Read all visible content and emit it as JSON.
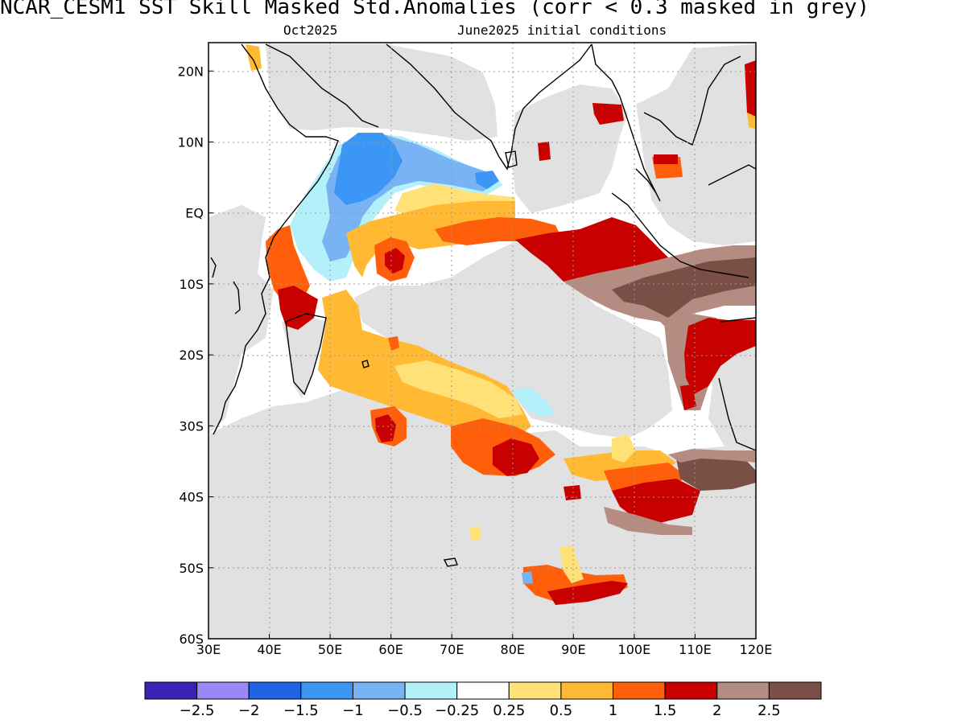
{
  "title": "NCAR_CESM1   SST Skill Masked Std.Anomalies (corr < 0.3 masked in grey)",
  "subtitle_month": "Oct2025",
  "subtitle_init": "June2025 initial conditions",
  "map": {
    "lon_range": [
      30,
      120
    ],
    "lat_range": [
      -60,
      24
    ],
    "lon_ticks": [
      {
        "value": 30,
        "label": "30E"
      },
      {
        "value": 40,
        "label": "40E"
      },
      {
        "value": 50,
        "label": "50E"
      },
      {
        "value": 60,
        "label": "60E"
      },
      {
        "value": 70,
        "label": "70E"
      },
      {
        "value": 80,
        "label": "80E"
      },
      {
        "value": 90,
        "label": "90E"
      },
      {
        "value": 100,
        "label": "100E"
      },
      {
        "value": 110,
        "label": "110E"
      },
      {
        "value": 120,
        "label": "120E"
      }
    ],
    "lat_ticks": [
      {
        "value": 20,
        "label": "20N"
      },
      {
        "value": 10,
        "label": "10N"
      },
      {
        "value": 0,
        "label": "EQ"
      },
      {
        "value": -10,
        "label": "10S"
      },
      {
        "value": -20,
        "label": "20S"
      },
      {
        "value": -30,
        "label": "30S"
      },
      {
        "value": -40,
        "label": "40S"
      },
      {
        "value": -50,
        "label": "50S"
      },
      {
        "value": -60,
        "label": "60S"
      }
    ],
    "mask_color": "#e1e1e1",
    "coast_color": "#000000"
  },
  "colorbar": {
    "colors": [
      "#3c22b4",
      "#9b87f5",
      "#1e64e6",
      "#3c96f5",
      "#78b4f5",
      "#b4f0fa",
      "#ffffff",
      "#ffe178",
      "#ffb932",
      "#ff5f0a",
      "#c80000",
      "#b48c82",
      "#7a5046"
    ],
    "labels": [
      "-2.5",
      "-2",
      "-1.5",
      "-1",
      "-0.5",
      "-0.25",
      "0.25",
      "0.5",
      "1",
      "1.5",
      "2",
      "2.5"
    ]
  }
}
